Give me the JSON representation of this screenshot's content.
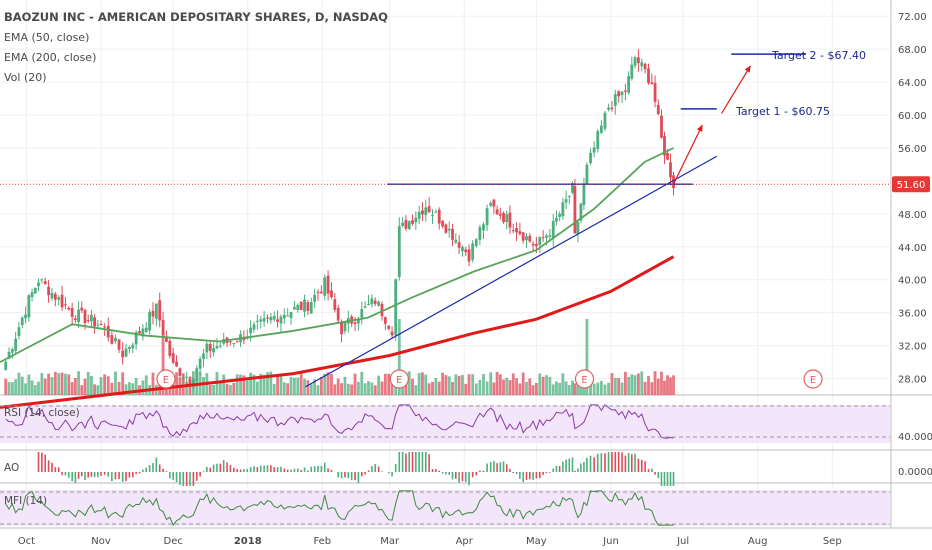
{
  "header": {
    "title": "BAOZUN INC - AMERICAN DEPOSITARY SHARES, D, NASDAQ",
    "indicators": [
      "EMA (50, close)",
      "EMA (200, close)",
      "Vol (20)"
    ]
  },
  "colors": {
    "up": "#4caf7d",
    "down": "#e04b5a",
    "ema50": "#5aa35a",
    "ema200": "#e01a1a",
    "trendline": "#1a2ab0",
    "target_arrow": "#e01a1a",
    "rsi": "#8a3aa6",
    "mfi": "#3e8a3e",
    "panel_fill": "#f3e6fb",
    "price_tag": "#e53935"
  },
  "price_axis": {
    "ticks": [
      "72.00",
      "68.00",
      "64.00",
      "60.00",
      "56.00",
      "52.00",
      "48.00",
      "44.00",
      "40.00",
      "36.00",
      "32.00",
      "28.00"
    ],
    "last_price": "51.60"
  },
  "time_axis": {
    "labels": [
      "Oct",
      "Nov",
      "Dec",
      "2018",
      "Feb",
      "Mar",
      "Apr",
      "May",
      "Jun",
      "Jul",
      "Aug",
      "Sep"
    ]
  },
  "earnings_markers": [
    "E",
    "E",
    "E",
    "E"
  ],
  "annotations": {
    "target1": "Target 1 - $60.75",
    "target2": "Target 2 - $67.40"
  },
  "panels": {
    "rsi": {
      "label": "RSI (14, close)",
      "value": "40.0000"
    },
    "ao": {
      "label": "AO",
      "value": "0.0000"
    },
    "mfi": {
      "label": "MFI (14)"
    }
  },
  "chart_data": {
    "type": "candlestick",
    "title": "BAOZUN INC - AMERICAN DEPOSITARY SHARES, D, NASDAQ",
    "ylim": [
      26,
      73
    ],
    "x_range": [
      "2017-09-20",
      "2018-09-25"
    ],
    "price_path": [
      {
        "date": "2017-09-21",
        "close": 29.0
      },
      {
        "date": "2017-10-02",
        "close": 37.5
      },
      {
        "date": "2017-10-06",
        "close": 40.0
      },
      {
        "date": "2017-10-20",
        "close": 36.0
      },
      {
        "date": "2017-11-01",
        "close": 34.5
      },
      {
        "date": "2017-11-10",
        "close": 31.0
      },
      {
        "date": "2017-11-24",
        "close": 36.5
      },
      {
        "date": "2017-12-01",
        "close": 29.5
      },
      {
        "date": "2017-12-08",
        "close": 28.0
      },
      {
        "date": "2017-12-15",
        "close": 31.5
      },
      {
        "date": "2017-12-29",
        "close": 33.0
      },
      {
        "date": "2018-01-12",
        "close": 35.5
      },
      {
        "date": "2018-01-26",
        "close": 37.0
      },
      {
        "date": "2018-02-02",
        "close": 39.5
      },
      {
        "date": "2018-02-09",
        "close": 34.0
      },
      {
        "date": "2018-02-23",
        "close": 37.5
      },
      {
        "date": "2018-03-02",
        "close": 34.0
      },
      {
        "date": "2018-03-05",
        "close": 46.0
      },
      {
        "date": "2018-03-16",
        "close": 49.0
      },
      {
        "date": "2018-03-23",
        "close": 47.0
      },
      {
        "date": "2018-04-03",
        "close": 43.0
      },
      {
        "date": "2018-04-12",
        "close": 49.0
      },
      {
        "date": "2018-04-20",
        "close": 47.0
      },
      {
        "date": "2018-05-01",
        "close": 44.0
      },
      {
        "date": "2018-05-08",
        "close": 46.5
      },
      {
        "date": "2018-05-16",
        "close": 51.0
      },
      {
        "date": "2018-05-17",
        "close": 45.0
      },
      {
        "date": "2018-05-22",
        "close": 53.5
      },
      {
        "date": "2018-05-31",
        "close": 61.0
      },
      {
        "date": "2018-06-07",
        "close": 63.0
      },
      {
        "date": "2018-06-11",
        "close": 67.0
      },
      {
        "date": "2018-06-18",
        "close": 64.0
      },
      {
        "date": "2018-06-22",
        "close": 57.0
      },
      {
        "date": "2018-06-27",
        "close": 51.6
      }
    ],
    "ema50": [
      {
        "date": "2017-09-20",
        "value": 30.0
      },
      {
        "date": "2017-10-20",
        "value": 34.6
      },
      {
        "date": "2017-11-20",
        "value": 33.2
      },
      {
        "date": "2017-12-20",
        "value": 32.5
      },
      {
        "date": "2018-01-20",
        "value": 33.8
      },
      {
        "date": "2018-02-20",
        "value": 35.4
      },
      {
        "date": "2018-03-10",
        "value": 37.8
      },
      {
        "date": "2018-04-05",
        "value": 41.0
      },
      {
        "date": "2018-05-01",
        "value": 43.6
      },
      {
        "date": "2018-05-25",
        "value": 48.6
      },
      {
        "date": "2018-06-15",
        "value": 54.3
      },
      {
        "date": "2018-06-27",
        "value": 56.0
      }
    ],
    "ema200": [
      {
        "date": "2017-09-20",
        "value": 24.5
      },
      {
        "date": "2017-11-20",
        "value": 26.6
      },
      {
        "date": "2018-01-20",
        "value": 28.6
      },
      {
        "date": "2018-03-01",
        "value": 30.8
      },
      {
        "date": "2018-04-05",
        "value": 33.5
      },
      {
        "date": "2018-05-01",
        "value": 35.2
      },
      {
        "date": "2018-06-01",
        "value": 38.6
      },
      {
        "date": "2018-06-27",
        "value": 42.8
      }
    ],
    "horizontal_resistance": {
      "value": 51.6,
      "from": "2018-02-28",
      "to": "2018-07-05"
    },
    "ascending_trendline": [
      {
        "date": "2018-01-25",
        "value": 27.0
      },
      {
        "date": "2018-07-15",
        "value": 55.0
      }
    ],
    "targets": [
      {
        "label": "Target 1 - $60.75",
        "value": 60.75,
        "from": "2018-06-30",
        "to": "2018-07-15"
      },
      {
        "label": "Target 2 - $67.40",
        "value": 67.4,
        "from": "2018-07-21",
        "to": "2018-08-21"
      }
    ],
    "earnings_dates": [
      "2017-11-28",
      "2018-03-05",
      "2018-05-21",
      "2018-08-24"
    ],
    "volume_spikes": [
      {
        "date": "2017-11-27",
        "relative": 0.78
      },
      {
        "date": "2018-03-05",
        "relative": 0.95
      },
      {
        "date": "2018-05-22",
        "relative": 0.95
      }
    ],
    "rsi_last": 40,
    "ao_last": 0,
    "series": [
      {
        "name": "EMA (50, close)"
      },
      {
        "name": "EMA (200, close)"
      },
      {
        "name": "Vol (20)"
      }
    ]
  }
}
